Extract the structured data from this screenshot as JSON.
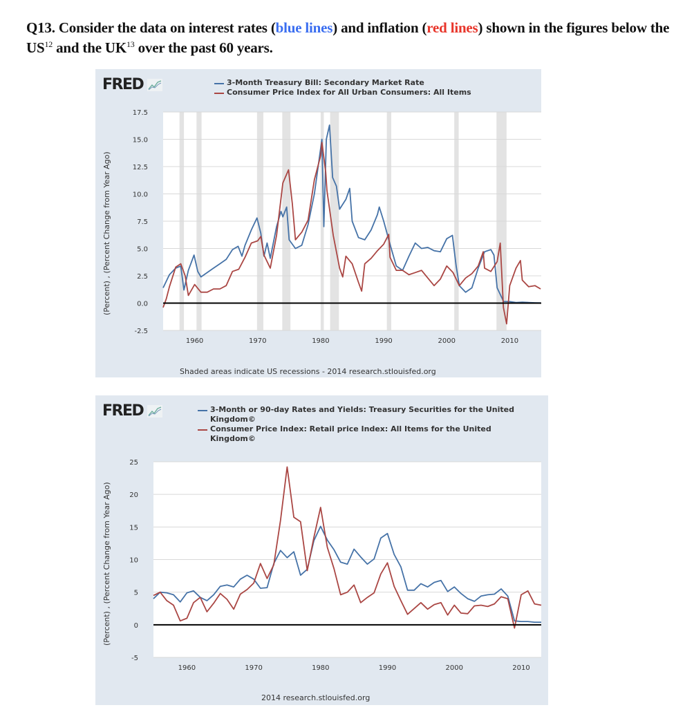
{
  "question": {
    "prefix": "Q13. Consider the data on interest rates (",
    "blue": "blue lines",
    "mid": ") and inflation (",
    "red": "red lines",
    "after": ") shown in the figures below the US",
    "sup1": "12",
    "and": " and the UK",
    "sup2": "13",
    "end": " over the past 60 years."
  },
  "chart_data": [
    {
      "type": "line",
      "logo": "FRED",
      "ylabel": "(Percent) , (Percent Change from Year Ago)",
      "note": "Shaded areas indicate US recessions - 2014 research.stlouisfed.org",
      "xlim": [
        1955,
        2015
      ],
      "ylim": [
        -2.5,
        17.5
      ],
      "yticks": [
        "17.5",
        "15.0",
        "12.5",
        "10.0",
        "7.5",
        "5.0",
        "2.5",
        "0.0",
        "-2.5"
      ],
      "ytick_values": [
        17.5,
        15,
        12.5,
        10,
        7.5,
        5,
        2.5,
        0,
        -2.5
      ],
      "xticks": [
        "1960",
        "1970",
        "1980",
        "1990",
        "2000",
        "2010"
      ],
      "grid": true,
      "legend": "top",
      "recessions": [
        [
          1957.6,
          1958.3
        ],
        [
          1960.3,
          1961.1
        ],
        [
          1969.9,
          1970.9
        ],
        [
          1973.9,
          1975.2
        ],
        [
          1980.0,
          1980.5
        ],
        [
          1981.5,
          1982.9
        ],
        [
          1990.5,
          1991.2
        ],
        [
          2001.2,
          2001.9
        ],
        [
          2007.9,
          2009.5
        ]
      ],
      "series": [
        {
          "name": "3-Month Treasury Bill: Secondary Market Rate",
          "color": "#4572a7",
          "x": [
            1955,
            1956,
            1957,
            1957.8,
            1958.3,
            1959,
            1959.9,
            1960.5,
            1961,
            1962,
            1963,
            1964,
            1965,
            1966,
            1966.9,
            1967.5,
            1968,
            1969,
            1969.9,
            1970.5,
            1971,
            1971.5,
            1972,
            1973,
            1973.7,
            1974,
            1974.6,
            1975,
            1976,
            1977,
            1978,
            1979,
            1980.2,
            1980.5,
            1980.9,
            1981.4,
            1981.9,
            1982.5,
            1983,
            1984,
            1984.6,
            1985,
            1986,
            1987,
            1988,
            1989,
            1989.3,
            1990,
            1991,
            1992,
            1993,
            1994,
            1995,
            1996,
            1997,
            1998,
            1999,
            2000,
            2000.9,
            2001.5,
            2002,
            2003,
            2004,
            2005,
            2006,
            2007,
            2007.5,
            2008,
            2008.9,
            2009,
            2010,
            2011,
            2012,
            2013,
            2014,
            2014.9
          ],
          "y": [
            1.4,
            2.6,
            3.2,
            3.4,
            1.2,
            3.0,
            4.4,
            2.9,
            2.4,
            2.8,
            3.2,
            3.6,
            4.0,
            4.9,
            5.2,
            4.3,
            5.3,
            6.7,
            7.8,
            6.4,
            4.3,
            5.5,
            4.1,
            7.0,
            8.4,
            7.9,
            8.8,
            5.8,
            5.0,
            5.3,
            7.2,
            10.0,
            15.0,
            7.0,
            15.0,
            16.3,
            11.5,
            10.7,
            8.6,
            9.5,
            10.5,
            7.5,
            6.0,
            5.8,
            6.7,
            8.1,
            8.8,
            7.5,
            5.4,
            3.4,
            3.0,
            4.3,
            5.5,
            5.0,
            5.1,
            4.8,
            4.7,
            5.9,
            6.2,
            3.4,
            1.6,
            1.0,
            1.4,
            3.2,
            4.7,
            4.9,
            4.4,
            1.4,
            0.3,
            0.15,
            0.14,
            0.05,
            0.09,
            0.06,
            0.03,
            0.02
          ]
        },
        {
          "name": "Consumer Price Index for All Urban Consumers: All Items",
          "color": "#aa4643",
          "x": [
            1955,
            1955.5,
            1956,
            1957,
            1957.8,
            1958.5,
            1959,
            1960,
            1961,
            1962,
            1963,
            1964,
            1965,
            1966,
            1967,
            1968,
            1969,
            1970,
            1970.5,
            1971,
            1972,
            1973,
            1974,
            1974.9,
            1975.5,
            1976,
            1977,
            1978,
            1979,
            1980,
            1980.2,
            1980.8,
            1981,
            1982,
            1983,
            1983.5,
            1984,
            1985,
            1986,
            1986.5,
            1987,
            1988,
            1989,
            1990,
            1990.8,
            1991,
            1992,
            1993,
            1994,
            1995,
            1996,
            1997,
            1998,
            1999,
            2000,
            2001,
            2002,
            2003,
            2004,
            2005,
            2005.8,
            2006,
            2007,
            2008,
            2008.5,
            2009,
            2009.5,
            2010,
            2011,
            2011.7,
            2012,
            2013,
            2014,
            2014.9
          ],
          "y": [
            -0.4,
            0.4,
            1.5,
            3.3,
            3.6,
            2.5,
            0.7,
            1.7,
            1.0,
            1.0,
            1.3,
            1.3,
            1.6,
            2.9,
            3.1,
            4.2,
            5.5,
            5.7,
            6.1,
            4.4,
            3.2,
            6.2,
            11.0,
            12.2,
            9.1,
            5.8,
            6.5,
            7.6,
            11.3,
            13.5,
            14.7,
            12.0,
            10.3,
            6.2,
            3.2,
            2.4,
            4.3,
            3.6,
            1.9,
            1.1,
            3.6,
            4.1,
            4.8,
            5.4,
            6.3,
            4.2,
            3.0,
            3.0,
            2.6,
            2.8,
            3.0,
            2.3,
            1.6,
            2.2,
            3.4,
            2.8,
            1.6,
            2.3,
            2.7,
            3.4,
            4.7,
            3.2,
            2.9,
            3.8,
            5.5,
            -0.4,
            -1.9,
            1.6,
            3.2,
            3.9,
            2.1,
            1.5,
            1.6,
            1.3
          ]
        }
      ]
    },
    {
      "type": "line",
      "logo": "FRED",
      "ylabel": "(Percent) , (Percent Change from Year Ago)",
      "note": "2014 research.stlouisfed.org",
      "xlim": [
        1955,
        2013
      ],
      "ylim": [
        -5,
        25
      ],
      "yticks": [
        "25",
        "20",
        "15",
        "10",
        "5",
        "0",
        "-5"
      ],
      "ytick_values": [
        25,
        20,
        15,
        10,
        5,
        0,
        -5
      ],
      "xticks": [
        "1960",
        "1970",
        "1980",
        "1990",
        "2000",
        "2010"
      ],
      "grid": true,
      "legend": "top",
      "series": [
        {
          "name": "3-Month or 90-day Rates and Yields: Treasury Securities for the United Kingdom©",
          "color": "#4572a7",
          "x": [
            1955,
            1956,
            1957,
            1958,
            1959,
            1960,
            1961,
            1962,
            1963,
            1964,
            1965,
            1966,
            1967,
            1968,
            1969,
            1970,
            1971,
            1972,
            1973,
            1974,
            1975,
            1976,
            1977,
            1978,
            1979,
            1980,
            1981,
            1982,
            1983,
            1984,
            1985,
            1986,
            1987,
            1988,
            1989,
            1990,
            1991,
            1992,
            1993,
            1994,
            1995,
            1996,
            1997,
            1998,
            1999,
            2000,
            2001,
            2002,
            2003,
            2004,
            2005,
            2006,
            2007,
            2008,
            2009,
            2010,
            2011,
            2012,
            2013
          ],
          "y": [
            4.0,
            5.0,
            4.9,
            4.6,
            3.5,
            4.9,
            5.2,
            4.2,
            3.7,
            4.6,
            5.9,
            6.1,
            5.8,
            7.0,
            7.6,
            7.0,
            5.6,
            5.7,
            9.4,
            11.4,
            10.3,
            11.2,
            7.6,
            8.5,
            12.9,
            15.1,
            13.0,
            11.5,
            9.6,
            9.3,
            11.6,
            10.4,
            9.3,
            10.1,
            13.3,
            14.0,
            10.8,
            8.9,
            5.3,
            5.3,
            6.3,
            5.8,
            6.5,
            6.8,
            5.1,
            5.8,
            4.8,
            4.0,
            3.6,
            4.4,
            4.6,
            4.7,
            5.5,
            4.4,
            0.6,
            0.5,
            0.5,
            0.4,
            0.4
          ]
        },
        {
          "name": "Consumer Price Index: Retail price Index: All Items for the United Kingdom©",
          "color": "#aa4643",
          "x": [
            1955,
            1956,
            1957,
            1958,
            1959,
            1960,
            1961,
            1962,
            1963,
            1964,
            1965,
            1966,
            1967,
            1968,
            1969,
            1970,
            1971,
            1972,
            1973,
            1974,
            1975,
            1976,
            1977,
            1978,
            1979,
            1980,
            1981,
            1982,
            1983,
            1984,
            1985,
            1986,
            1987,
            1988,
            1989,
            1990,
            1991,
            1992,
            1993,
            1994,
            1995,
            1996,
            1997,
            1998,
            1999,
            2000,
            2001,
            2002,
            2003,
            2004,
            2005,
            2006,
            2007,
            2008,
            2009,
            2010,
            2011,
            2012,
            2013
          ],
          "y": [
            4.5,
            5.0,
            3.7,
            3.0,
            0.6,
            1.0,
            3.4,
            4.2,
            2.0,
            3.3,
            4.8,
            3.9,
            2.4,
            4.7,
            5.4,
            6.4,
            9.4,
            7.1,
            9.2,
            16.0,
            24.2,
            16.5,
            15.8,
            8.3,
            13.4,
            18.0,
            11.9,
            8.6,
            4.6,
            5.0,
            6.1,
            3.4,
            4.2,
            4.9,
            7.8,
            9.5,
            5.9,
            3.7,
            1.6,
            2.5,
            3.4,
            2.4,
            3.1,
            3.4,
            1.5,
            3.0,
            1.8,
            1.7,
            2.9,
            3.0,
            2.8,
            3.2,
            4.3,
            4.0,
            -0.5,
            4.6,
            5.2,
            3.2,
            3.0
          ]
        }
      ]
    }
  ]
}
